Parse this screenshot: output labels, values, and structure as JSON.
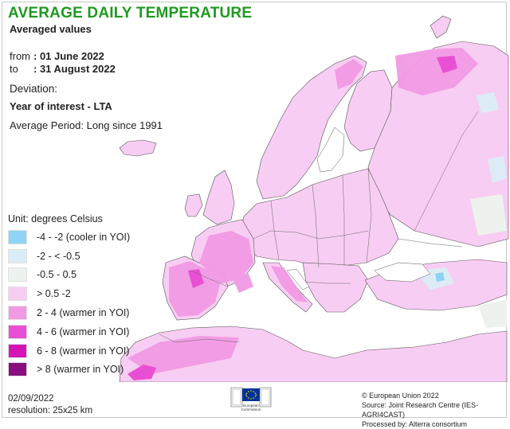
{
  "header": {
    "title": "AVERAGE DAILY TEMPERATURE",
    "subtitle": "Averaged values"
  },
  "period": {
    "from_label": "from",
    "from_value": ": 01 June 2022",
    "to_label": "to",
    "to_value": ": 31 August 2022"
  },
  "deviation": {
    "label": "Deviation:",
    "mode": "Year of interest - LTA",
    "average_period": "Average Period: Long since 1991"
  },
  "legend": {
    "unit": "Unit: degrees Celsius",
    "classes": [
      {
        "label": "-4 - -2 (cooler in YOI)",
        "color": "#8fd3f5"
      },
      {
        "label": "-2 - < -0.5",
        "color": "#dcecf7"
      },
      {
        "label": "-0.5 - 0.5",
        "color": "#eef2ee"
      },
      {
        "label": "> 0.5 -2",
        "color": "#f8cdf3"
      },
      {
        "label": "2 - 4 (warmer in YOI)",
        "color": "#f19ae4"
      },
      {
        "label": "4 - 6 (warmer in YOI)",
        "color": "#e94fd4"
      },
      {
        "label": "6 - 8 (warmer in YOI)",
        "color": "#d414b5"
      },
      {
        "label": "> 8 (warmer in YOI)",
        "color": "#8a0f7e"
      }
    ]
  },
  "footer": {
    "date": "02/09/2022",
    "resolution": "resolution: 25x25 km",
    "copyright": "© European Union 2022",
    "source": "Source: Joint Research Centre (IES-AGRI4CAST)",
    "processed": "Processed by: Alterra consortium",
    "logo_text_1": "European",
    "logo_text_2": "Commission"
  },
  "colors": {
    "title": "#1f9a1f",
    "land_base": "#f8cdf3",
    "land_warm": "#f19ae4",
    "land_hot": "#e94fd4",
    "land_neutral": "#eef2ee",
    "land_cool": "#dcecf7",
    "sea": "#ffffff",
    "border": "#555555",
    "eu_blue": "#003399",
    "eu_gold": "#ffcc00"
  },
  "icons": [
    "eu-flag-icon"
  ]
}
